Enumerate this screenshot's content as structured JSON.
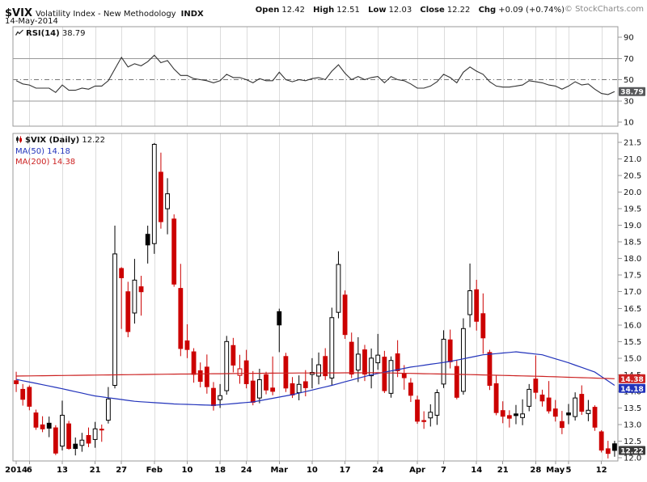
{
  "header": {
    "symbol": "$VIX",
    "title": "Volatility Index - New Methodology",
    "exchange": "INDX",
    "date": "14-May-2014",
    "branding": "© StockCharts.com",
    "quote": [
      {
        "label": "Open",
        "value": "12.42"
      },
      {
        "label": "High",
        "value": "12.51"
      },
      {
        "label": "Low",
        "value": "12.03"
      },
      {
        "label": "Close",
        "value": "12.22"
      },
      {
        "label": "Chg",
        "value": "+0.09 (+0.74%)"
      }
    ]
  },
  "legend": {
    "rsi_label": "RSI(14)",
    "rsi_value": "38.79",
    "price_label": "$VIX (Daily)",
    "price_value": "12.22",
    "ma50_label": "MA(50) 14.18",
    "ma200_label": "MA(200) 14.38"
  },
  "icons": {
    "rsi_legend": "line-chart-icon",
    "price_legend": "candlestick-icon"
  },
  "colors": {
    "down": "#cc0000",
    "up": "#000000",
    "ma50": "#2233bb",
    "ma200": "#cc2222",
    "rsi_line": "#333333",
    "grid": "#dcdcdc",
    "hline": "#999999",
    "panel_border": "#999999",
    "badge_rsi": "#58595b",
    "badge_close": "#3a3a3a",
    "brand": "#888888"
  },
  "chart_data": {
    "type": "candlestick",
    "title": "$VIX (Daily) with RSI(14), MA(50), MA(200)",
    "x_ticks": [
      {
        "i": 0,
        "label": "2014"
      },
      {
        "i": 2,
        "label": "6"
      },
      {
        "i": 7,
        "label": "13"
      },
      {
        "i": 12,
        "label": "21"
      },
      {
        "i": 16,
        "label": "27"
      },
      {
        "i": 21,
        "label": "Feb"
      },
      {
        "i": 26,
        "label": "10"
      },
      {
        "i": 31,
        "label": "18"
      },
      {
        "i": 35,
        "label": "24"
      },
      {
        "i": 40,
        "label": "Mar"
      },
      {
        "i": 45,
        "label": "10"
      },
      {
        "i": 50,
        "label": "17"
      },
      {
        "i": 55,
        "label": "24"
      },
      {
        "i": 61,
        "label": "Apr"
      },
      {
        "i": 65,
        "label": "7"
      },
      {
        "i": 70,
        "label": "14"
      },
      {
        "i": 74,
        "label": "21"
      },
      {
        "i": 79,
        "label": "28"
      },
      {
        "i": 82,
        "label": "May"
      },
      {
        "i": 84,
        "label": "5"
      },
      {
        "i": 89,
        "label": "12"
      }
    ],
    "rsi_panel": {
      "type": "line",
      "label": "RSI(14)",
      "last": 38.79,
      "yticks": [
        90,
        70,
        50,
        30,
        10
      ],
      "hlines": [
        70,
        30
      ],
      "centerline": 50,
      "values": [
        49,
        46,
        45,
        42,
        42,
        42,
        38,
        45,
        40,
        40,
        42,
        41,
        44,
        44,
        49,
        60,
        71,
        62,
        65,
        63,
        67,
        73,
        66,
        68,
        60,
        54,
        54,
        51,
        50,
        49,
        47,
        49,
        55,
        52,
        52,
        50,
        47,
        51,
        49,
        49,
        57,
        50,
        48,
        50,
        49,
        51,
        52,
        50,
        58,
        64,
        56,
        50,
        53,
        50,
        52,
        53,
        47,
        53,
        50,
        49,
        46,
        42,
        42,
        44,
        48,
        55,
        52,
        47,
        57,
        62,
        58,
        55,
        48,
        44,
        43,
        43,
        44,
        45,
        49,
        48,
        47,
        45,
        44,
        41,
        44,
        48,
        45,
        46,
        41,
        37,
        36,
        38.8
      ]
    },
    "price_panel": {
      "type": "candlestick",
      "ylim": [
        11.8,
        21.73
      ],
      "yticks": [
        21.5,
        21.0,
        20.5,
        20.0,
        19.5,
        19.0,
        18.5,
        18.0,
        17.5,
        17.0,
        16.5,
        16.0,
        15.5,
        15.0,
        14.5,
        14.0,
        13.5,
        13.0,
        12.5,
        12.0
      ],
      "last_close": 12.22,
      "candles": [
        [
          "2-Jan",
          14.32,
          14.59,
          13.98,
          14.23
        ],
        [
          "3-Jan",
          14.06,
          14.22,
          13.57,
          13.76
        ],
        [
          "6-Jan",
          14.12,
          14.18,
          13.43,
          13.55
        ],
        [
          "7-Jan",
          13.35,
          13.45,
          12.84,
          12.92
        ],
        [
          "8-Jan",
          12.99,
          13.25,
          12.77,
          12.87
        ],
        [
          "9-Jan",
          13.04,
          13.24,
          12.62,
          12.89
        ],
        [
          "10-Jan",
          12.9,
          12.98,
          12.08,
          12.14
        ],
        [
          "13-Jan",
          12.35,
          13.72,
          12.22,
          13.28
        ],
        [
          "14-Jan",
          13.02,
          13.11,
          12.24,
          12.28
        ],
        [
          "15-Jan",
          12.41,
          12.61,
          12.07,
          12.28
        ],
        [
          "16-Jan",
          12.37,
          12.75,
          12.18,
          12.53
        ],
        [
          "17-Jan",
          12.67,
          12.91,
          12.32,
          12.44
        ],
        [
          "21-Jan",
          12.55,
          13.08,
          12.3,
          12.87
        ],
        [
          "22-Jan",
          12.86,
          13.0,
          12.48,
          12.84
        ],
        [
          "23-Jan",
          13.13,
          14.13,
          13.03,
          13.77
        ],
        [
          "24-Jan",
          14.18,
          18.99,
          14.09,
          18.14
        ],
        [
          "27-Jan",
          17.7,
          17.74,
          15.88,
          17.42
        ],
        [
          "28-Jan",
          17.0,
          17.3,
          15.63,
          15.8
        ],
        [
          "29-Jan",
          16.36,
          17.99,
          16.04,
          17.35
        ],
        [
          "30-Jan",
          17.15,
          17.48,
          16.28,
          17.0
        ],
        [
          "31-Jan",
          18.73,
          18.99,
          17.85,
          18.41
        ],
        [
          "3-Feb",
          18.45,
          21.48,
          18.14,
          21.44
        ],
        [
          "4-Feb",
          20.6,
          21.19,
          18.9,
          19.11
        ],
        [
          "5-Feb",
          19.5,
          20.42,
          18.73,
          19.95
        ],
        [
          "6-Feb",
          19.19,
          19.33,
          17.15,
          17.23
        ],
        [
          "7-Feb",
          17.1,
          17.84,
          15.06,
          15.29
        ],
        [
          "10-Feb",
          15.52,
          16.02,
          15.0,
          15.26
        ],
        [
          "11-Feb",
          15.19,
          15.3,
          14.26,
          14.51
        ],
        [
          "12-Feb",
          14.62,
          14.87,
          14.12,
          14.3
        ],
        [
          "13-Feb",
          14.73,
          15.11,
          13.93,
          14.14
        ],
        [
          "14-Feb",
          14.09,
          14.28,
          13.42,
          13.57
        ],
        [
          "18-Feb",
          13.75,
          14.22,
          13.5,
          13.87
        ],
        [
          "19-Feb",
          14.02,
          15.67,
          13.9,
          15.5
        ],
        [
          "20-Feb",
          15.38,
          15.61,
          14.57,
          14.79
        ],
        [
          "21-Feb",
          14.48,
          15.1,
          14.23,
          14.68
        ],
        [
          "24-Feb",
          14.92,
          15.25,
          14.09,
          14.23
        ],
        [
          "25-Feb",
          14.31,
          14.61,
          13.58,
          13.67
        ],
        [
          "26-Feb",
          13.8,
          14.68,
          13.64,
          14.35
        ],
        [
          "27-Feb",
          14.5,
          14.59,
          13.91,
          14.04
        ],
        [
          "28-Feb",
          14.1,
          15.05,
          13.88,
          14.0
        ],
        [
          "3-Mar",
          16.4,
          16.49,
          15.18,
          16.0
        ],
        [
          "4-Mar",
          15.05,
          15.16,
          13.98,
          14.1
        ],
        [
          "5-Mar",
          14.23,
          14.43,
          13.8,
          13.89
        ],
        [
          "6-Mar",
          13.96,
          14.48,
          13.73,
          14.21
        ],
        [
          "7-Mar",
          14.29,
          14.64,
          13.85,
          14.11
        ],
        [
          "10-Mar",
          14.51,
          15.0,
          14.09,
          14.57
        ],
        [
          "11-Mar",
          14.46,
          15.17,
          14.21,
          14.8
        ],
        [
          "12-Mar",
          15.05,
          15.3,
          14.34,
          14.47
        ],
        [
          "13-Mar",
          14.4,
          16.52,
          14.17,
          16.22
        ],
        [
          "14-Mar",
          16.38,
          18.22,
          16.2,
          17.82
        ],
        [
          "17-Mar",
          16.9,
          17.04,
          15.58,
          15.71
        ],
        [
          "18-Mar",
          15.48,
          15.77,
          14.4,
          14.52
        ],
        [
          "19-Mar",
          14.64,
          15.63,
          14.28,
          15.12
        ],
        [
          "20-Mar",
          15.25,
          15.4,
          14.31,
          14.52
        ],
        [
          "21-Mar",
          14.47,
          15.29,
          14.09,
          15.0
        ],
        [
          "24-Mar",
          14.86,
          15.73,
          14.65,
          15.09
        ],
        [
          "25-Mar",
          15.03,
          15.22,
          13.95,
          14.02
        ],
        [
          "26-Mar",
          13.94,
          15.05,
          13.81,
          14.93
        ],
        [
          "27-Mar",
          15.13,
          15.54,
          14.43,
          14.62
        ],
        [
          "28-Mar",
          14.54,
          14.79,
          14.05,
          14.41
        ],
        [
          "31-Mar",
          14.25,
          14.4,
          13.68,
          13.88
        ],
        [
          "1-Apr",
          13.74,
          13.87,
          13.02,
          13.1
        ],
        [
          "2-Apr",
          13.12,
          13.4,
          12.87,
          13.09
        ],
        [
          "3-Apr",
          13.2,
          13.61,
          12.94,
          13.37
        ],
        [
          "4-Apr",
          13.28,
          14.06,
          12.99,
          13.96
        ],
        [
          "7-Apr",
          14.22,
          15.84,
          14.1,
          15.57
        ],
        [
          "8-Apr",
          15.55,
          15.86,
          14.69,
          14.89
        ],
        [
          "9-Apr",
          14.75,
          14.95,
          13.76,
          13.82
        ],
        [
          "10-Apr",
          14.0,
          16.2,
          13.9,
          15.89
        ],
        [
          "11-Apr",
          16.31,
          17.85,
          15.93,
          17.03
        ],
        [
          "14-Apr",
          17.06,
          17.36,
          15.83,
          16.11
        ],
        [
          "15-Apr",
          16.34,
          16.95,
          15.13,
          15.61
        ],
        [
          "16-Apr",
          15.17,
          15.25,
          14.04,
          14.18
        ],
        [
          "17-Apr",
          14.23,
          14.48,
          13.28,
          13.36
        ],
        [
          "21-Apr",
          13.42,
          13.7,
          13.04,
          13.25
        ],
        [
          "22-Apr",
          13.27,
          13.43,
          12.91,
          13.19
        ],
        [
          "23-Apr",
          13.32,
          13.59,
          13.01,
          13.27
        ],
        [
          "24-Apr",
          13.21,
          13.76,
          12.98,
          13.32
        ],
        [
          "25-Apr",
          13.55,
          14.22,
          13.4,
          14.06
        ],
        [
          "28-Apr",
          14.37,
          15.08,
          13.77,
          13.97
        ],
        [
          "29-Apr",
          13.89,
          14.05,
          13.54,
          13.71
        ],
        [
          "30-Apr",
          13.8,
          14.31,
          13.33,
          13.41
        ],
        [
          "1-May",
          13.47,
          13.74,
          13.09,
          13.25
        ],
        [
          "2-May",
          13.09,
          13.41,
          12.71,
          12.91
        ],
        [
          "5-May",
          13.35,
          13.62,
          13.01,
          13.29
        ],
        [
          "6-May",
          13.24,
          13.97,
          13.12,
          13.8
        ],
        [
          "7-May",
          13.91,
          14.18,
          13.29,
          13.4
        ],
        [
          "8-May",
          13.33,
          13.74,
          13.1,
          13.43
        ],
        [
          "9-May",
          13.52,
          13.58,
          12.81,
          12.92
        ],
        [
          "12-May",
          12.78,
          12.83,
          12.16,
          12.23
        ],
        [
          "13-May",
          12.27,
          12.51,
          11.98,
          12.13
        ],
        [
          "14-May",
          12.42,
          12.51,
          12.03,
          12.22
        ]
      ],
      "overlays": [
        {
          "name": "MA(50)",
          "last": 14.18,
          "color_key": "ma50",
          "points": [
            [
              0,
              14.36
            ],
            [
              6,
              14.12
            ],
            [
              12,
              13.86
            ],
            [
              18,
              13.7
            ],
            [
              24,
              13.62
            ],
            [
              30,
              13.58
            ],
            [
              36,
              13.68
            ],
            [
              42,
              13.9
            ],
            [
              48,
              14.18
            ],
            [
              54,
              14.5
            ],
            [
              60,
              14.73
            ],
            [
              66,
              14.9
            ],
            [
              71,
              15.1
            ],
            [
              76,
              15.19
            ],
            [
              80,
              15.1
            ],
            [
              84,
              14.86
            ],
            [
              88,
              14.58
            ],
            [
              91,
              14.18
            ]
          ]
        },
        {
          "name": "MA(200)",
          "last": 14.38,
          "color_key": "ma200",
          "points": [
            [
              0,
              14.46
            ],
            [
              20,
              14.51
            ],
            [
              40,
              14.55
            ],
            [
              55,
              14.56
            ],
            [
              70,
              14.5
            ],
            [
              80,
              14.45
            ],
            [
              91,
              14.38
            ]
          ]
        }
      ]
    },
    "axis_badges": [
      {
        "name": "rsi-last-badge",
        "panel": "rsi",
        "value": 38.8,
        "text": "38.79",
        "bg": "#58595b"
      },
      {
        "name": "ma200-last-badge",
        "panel": "price",
        "value": 14.38,
        "text": "14.38",
        "bg": "#cc2222"
      },
      {
        "name": "ma50-last-badge",
        "panel": "price",
        "value": 14.18,
        "text": "14.18",
        "bg": "#2233bb"
      },
      {
        "name": "close-last-badge",
        "panel": "price",
        "value": 12.22,
        "text": "12.22",
        "bg": "#3a3a3a"
      }
    ]
  }
}
